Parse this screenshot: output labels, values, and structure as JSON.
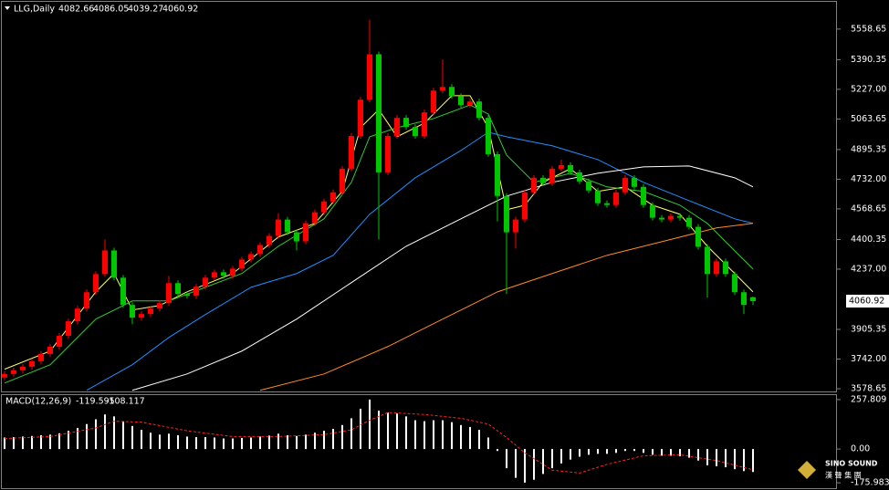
{
  "chart_data": [
    {
      "type": "candlestick",
      "title": "LLG,Daily",
      "ohlc": [
        4082.66,
        4086.05,
        4039.27,
        4060.92
      ],
      "up_color": "#ff0000",
      "down_color": "#00c800",
      "ylim": [
        3558.65,
        5708.65
      ],
      "yticks": [
        5558.65,
        5390.35,
        {
          "value": 5227,
          "label": "5227.00"
        },
        5063.65,
        4895.35,
        {
          "value": 4732,
          "label": "4732.00"
        },
        4568.65,
        4400.35,
        {
          "value": 4237,
          "label": "4237.00"
        },
        3905.35,
        {
          "value": 3742,
          "label": "3742.00"
        },
        3578.65
      ],
      "candles": [
        [
          3640,
          3675,
          3625,
          3660
        ],
        [
          3660,
          3695,
          3645,
          3680
        ],
        [
          3680,
          3715,
          3665,
          3700
        ],
        [
          3700,
          3745,
          3685,
          3730
        ],
        [
          3730,
          3785,
          3715,
          3770
        ],
        [
          3770,
          3825,
          3755,
          3810
        ],
        [
          3810,
          3885,
          3795,
          3870
        ],
        [
          3870,
          3965,
          3855,
          3950
        ],
        [
          3950,
          4035,
          3935,
          4020
        ],
        [
          4020,
          4125,
          4005,
          4110
        ],
        [
          4110,
          4225,
          4095,
          4210
        ],
        [
          4210,
          4400,
          4195,
          4340
        ],
        [
          4340,
          4355,
          4175,
          4190
        ],
        [
          4190,
          4205,
          4025,
          4040
        ],
        [
          4040,
          4055,
          3935,
          3970
        ],
        [
          3970,
          4005,
          3955,
          3990
        ],
        [
          3990,
          4035,
          3975,
          4020
        ],
        [
          4020,
          4065,
          4005,
          4050
        ],
        [
          4050,
          4200,
          4035,
          4160
        ],
        [
          4160,
          4175,
          4085,
          4100
        ],
        [
          4100,
          4115,
          4075,
          4090
        ],
        [
          4090,
          4155,
          4075,
          4140
        ],
        [
          4140,
          4205,
          4125,
          4190
        ],
        [
          4190,
          4235,
          4175,
          4220
        ],
        [
          4220,
          4235,
          4185,
          4200
        ],
        [
          4200,
          4255,
          4185,
          4240
        ],
        [
          4240,
          4305,
          4225,
          4290
        ],
        [
          4290,
          4335,
          4275,
          4320
        ],
        [
          4320,
          4385,
          4305,
          4370
        ],
        [
          4370,
          4435,
          4355,
          4420
        ],
        [
          4420,
          4545,
          4405,
          4510
        ],
        [
          4510,
          4525,
          4425,
          4440
        ],
        [
          4440,
          4455,
          4340,
          4390
        ],
        [
          4390,
          4505,
          4375,
          4490
        ],
        [
          4490,
          4565,
          4475,
          4550
        ],
        [
          4550,
          4625,
          4535,
          4610
        ],
        [
          4610,
          4675,
          4595,
          4660
        ],
        [
          4660,
          4805,
          4645,
          4790
        ],
        [
          4790,
          4985,
          4775,
          4970
        ],
        [
          4970,
          5185,
          4955,
          5170
        ],
        [
          5170,
          5608,
          5155,
          5420
        ],
        [
          5420,
          5435,
          4400,
          4770
        ],
        [
          4770,
          4985,
          4755,
          4970
        ],
        [
          4970,
          5085,
          4955,
          5070
        ],
        [
          5070,
          5085,
          5005,
          5020
        ],
        [
          5020,
          5035,
          4955,
          4970
        ],
        [
          4970,
          5115,
          4955,
          5100
        ],
        [
          5100,
          5235,
          5085,
          5220
        ],
        [
          5220,
          5390,
          5205,
          5240
        ],
        [
          5240,
          5255,
          5175,
          5190
        ],
        [
          5190,
          5205,
          5125,
          5140
        ],
        [
          5140,
          5175,
          5125,
          5160
        ],
        [
          5160,
          5175,
          5055,
          5070
        ],
        [
          5070,
          5085,
          4855,
          4870
        ],
        [
          4870,
          4885,
          4500,
          4640
        ],
        [
          4640,
          4655,
          4100,
          4440
        ],
        [
          4440,
          4525,
          4350,
          4510
        ],
        [
          4510,
          4675,
          4495,
          4660
        ],
        [
          4660,
          4755,
          4645,
          4740
        ],
        [
          4740,
          4755,
          4695,
          4710
        ],
        [
          4710,
          4805,
          4695,
          4790
        ],
        [
          4790,
          4840,
          4775,
          4810
        ],
        [
          4810,
          4825,
          4755,
          4770
        ],
        [
          4770,
          4785,
          4705,
          4720
        ],
        [
          4720,
          4735,
          4655,
          4670
        ],
        [
          4670,
          4685,
          4585,
          4600
        ],
        [
          4600,
          4615,
          4575,
          4590
        ],
        [
          4590,
          4675,
          4575,
          4660
        ],
        [
          4660,
          4755,
          4645,
          4740
        ],
        [
          4740,
          4755,
          4675,
          4690
        ],
        [
          4690,
          4705,
          4575,
          4590
        ],
        [
          4590,
          4605,
          4505,
          4520
        ],
        [
          4520,
          4535,
          4495,
          4510
        ],
        [
          4510,
          4545,
          4495,
          4530
        ],
        [
          4530,
          4545,
          4505,
          4520
        ],
        [
          4520,
          4535,
          4455,
          4470
        ],
        [
          4470,
          4485,
          4345,
          4360
        ],
        [
          4360,
          4375,
          4080,
          4210
        ],
        [
          4210,
          4295,
          4195,
          4280
        ],
        [
          4280,
          4295,
          4195,
          4210
        ],
        [
          4210,
          4225,
          4095,
          4110
        ],
        [
          4110,
          4125,
          3990,
          4040
        ],
        [
          4082.66,
          4086.05,
          4039.27,
          4060.92
        ]
      ],
      "series": [
        {
          "color": "#ffff66",
          "x": [
            0,
            5,
            10,
            12,
            14,
            17,
            20,
            25,
            30,
            34,
            37,
            39,
            41,
            43,
            46,
            49,
            51,
            53,
            55,
            57,
            59,
            62,
            65,
            68,
            71,
            74,
            77,
            80,
            82
          ],
          "values": [
            3686,
            3786,
            4112,
            4213,
            4012,
            4037,
            4112,
            4213,
            4414,
            4489,
            4665,
            5016,
            5116,
            4966,
            5041,
            5192,
            5192,
            5016,
            4564,
            4589,
            4715,
            4790,
            4665,
            4690,
            4589,
            4539,
            4363,
            4213,
            4112
          ]
        },
        {
          "color": "#33cc33",
          "x": [
            0,
            5,
            10,
            14,
            18,
            22,
            26,
            30,
            35,
            38,
            40,
            43,
            47,
            51,
            53,
            55,
            58,
            62,
            66,
            70,
            74,
            77,
            80,
            82
          ],
          "values": [
            3610,
            3711,
            3962,
            4062,
            4062,
            4137,
            4213,
            4363,
            4514,
            4715,
            4966,
            5016,
            5066,
            5141,
            5091,
            4865,
            4715,
            4765,
            4690,
            4665,
            4589,
            4489,
            4338,
            4238
          ]
        },
        {
          "color": "#1e90ff",
          "x": [
            9,
            14,
            18,
            22,
            27,
            32,
            36,
            40,
            45,
            50,
            53,
            55,
            60,
            65,
            70,
            75,
            80,
            82
          ],
          "values": [
            3570,
            3711,
            3861,
            3987,
            4137,
            4213,
            4313,
            4539,
            4740,
            4890,
            4991,
            4966,
            4916,
            4840,
            4715,
            4614,
            4514,
            4489
          ]
        },
        {
          "color": "#ffffff",
          "x": [
            14,
            20,
            26,
            32,
            38,
            44,
            50,
            55,
            60,
            65,
            70,
            75,
            80,
            82
          ],
          "values": [
            3570,
            3660,
            3786,
            3962,
            4163,
            4363,
            4514,
            4639,
            4715,
            4765,
            4800,
            4805,
            4740,
            4690
          ]
        },
        {
          "color": "#ff8c1a",
          "x": [
            28,
            35,
            42,
            48,
            54,
            60,
            66,
            72,
            78,
            82
          ],
          "values": [
            3570,
            3660,
            3811,
            3962,
            4112,
            4213,
            4313,
            4388,
            4464,
            4489
          ]
        }
      ]
    },
    {
      "type": "macd",
      "title": "MACD(12,26,9)",
      "color": "#ffffff",
      "signal_color": "#ff2020",
      "ylim": [
        -204,
        281
      ],
      "yticks": [
        257.809,
        {
          "value": 0,
          "label": "0.00"
        },
        -175.983
      ],
      "values": [
        60,
        62,
        65,
        68,
        72,
        75,
        82,
        95,
        110,
        130,
        155,
        180,
        170,
        145,
        120,
        100,
        85,
        75,
        80,
        72,
        65,
        62,
        62,
        60,
        55,
        55,
        58,
        60,
        65,
        70,
        80,
        72,
        68,
        75,
        85,
        95,
        105,
        125,
        160,
        210,
        258,
        200,
        190,
        185,
        170,
        150,
        145,
        150,
        150,
        140,
        125,
        115,
        100,
        60,
        -10,
        -100,
        -150,
        -175,
        -160,
        -130,
        -100,
        -75,
        -55,
        -40,
        -30,
        -25,
        -25,
        -20,
        -10,
        -10,
        -20,
        -30,
        -35,
        -35,
        -38,
        -45,
        -60,
        -85,
        -90,
        -95,
        -105,
        -115,
        -119.595
      ],
      "signal": {
        "x": [
          0,
          5,
          10,
          12,
          15,
          20,
          25,
          30,
          35,
          38,
          40,
          42,
          46,
          50,
          53,
          55,
          57,
          60,
          63,
          66,
          70,
          74,
          78,
          82
        ],
        "values": [
          55,
          65,
          110,
          145,
          140,
          95,
          65,
          65,
          75,
          100,
          150,
          190,
          180,
          160,
          130,
          60,
          -20,
          -110,
          -125,
          -80,
          -35,
          -30,
          -60,
          -108.117
        ]
      }
    }
  ],
  "logo": {
    "name": "SINO SOUND",
    "subtitle": "漢 聲 集 團"
  }
}
